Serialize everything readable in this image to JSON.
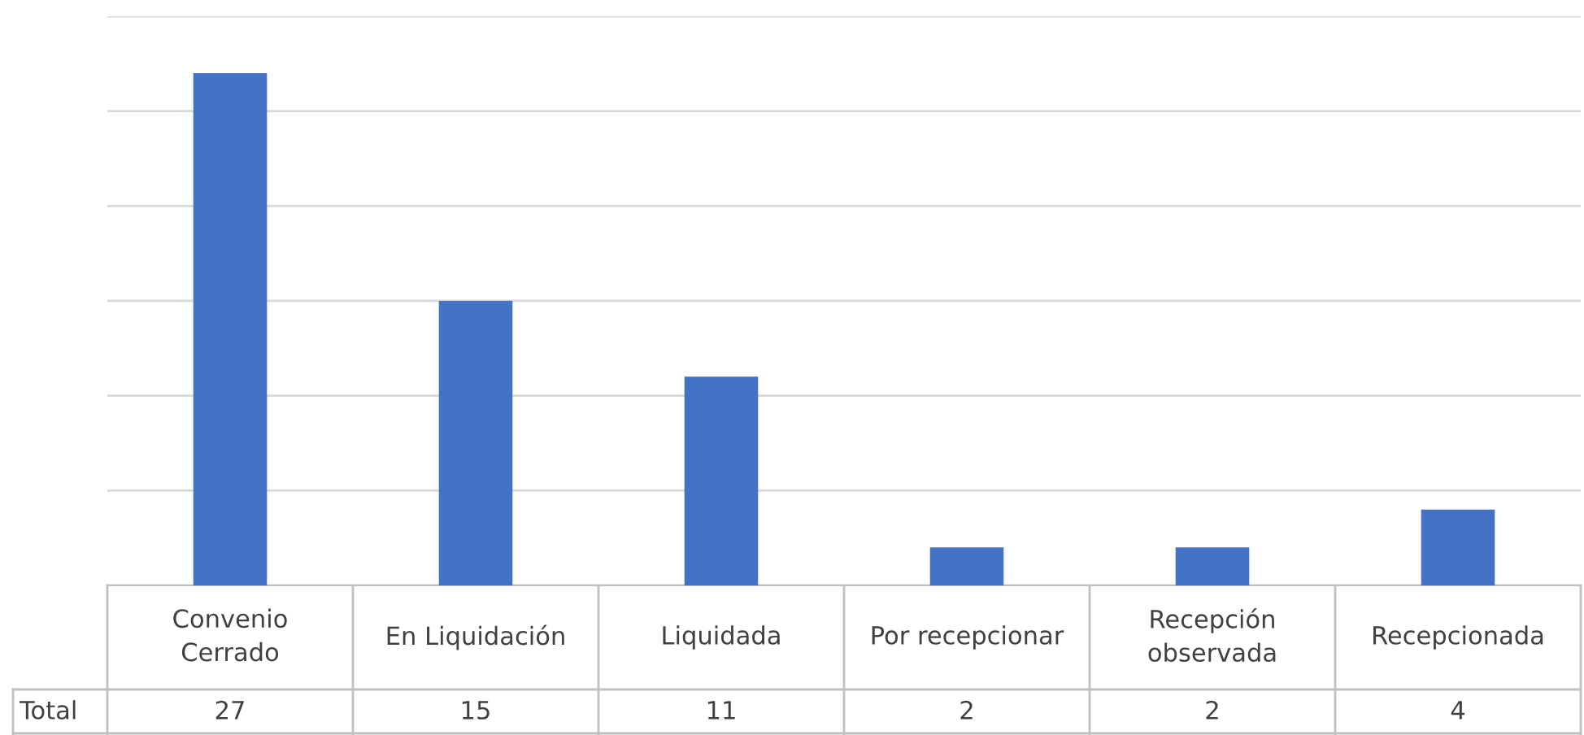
{
  "chart_data": {
    "type": "bar",
    "categories": [
      "Convenio\nCerrado",
      "En Liquidación",
      "Liquidada",
      "Por recepcionar",
      "Recepción\nobservada",
      "Recepcionada"
    ],
    "series": [
      {
        "name": "Total",
        "color": "#4472c4",
        "values": [
          27,
          15,
          11,
          2,
          2,
          4
        ]
      }
    ],
    "ylim": [
      0,
      30
    ],
    "yticks": [
      {
        "value": 0,
        "label": null
      },
      {
        "value": 5,
        "label": null
      },
      {
        "value": 10,
        "label": null
      },
      {
        "value": 15,
        "label": null
      },
      {
        "value": 20,
        "label": null
      },
      {
        "value": 25,
        "label": null
      },
      {
        "value": 30,
        "label": null
      }
    ],
    "grid": "y",
    "data_labels": true,
    "legend": false
  }
}
